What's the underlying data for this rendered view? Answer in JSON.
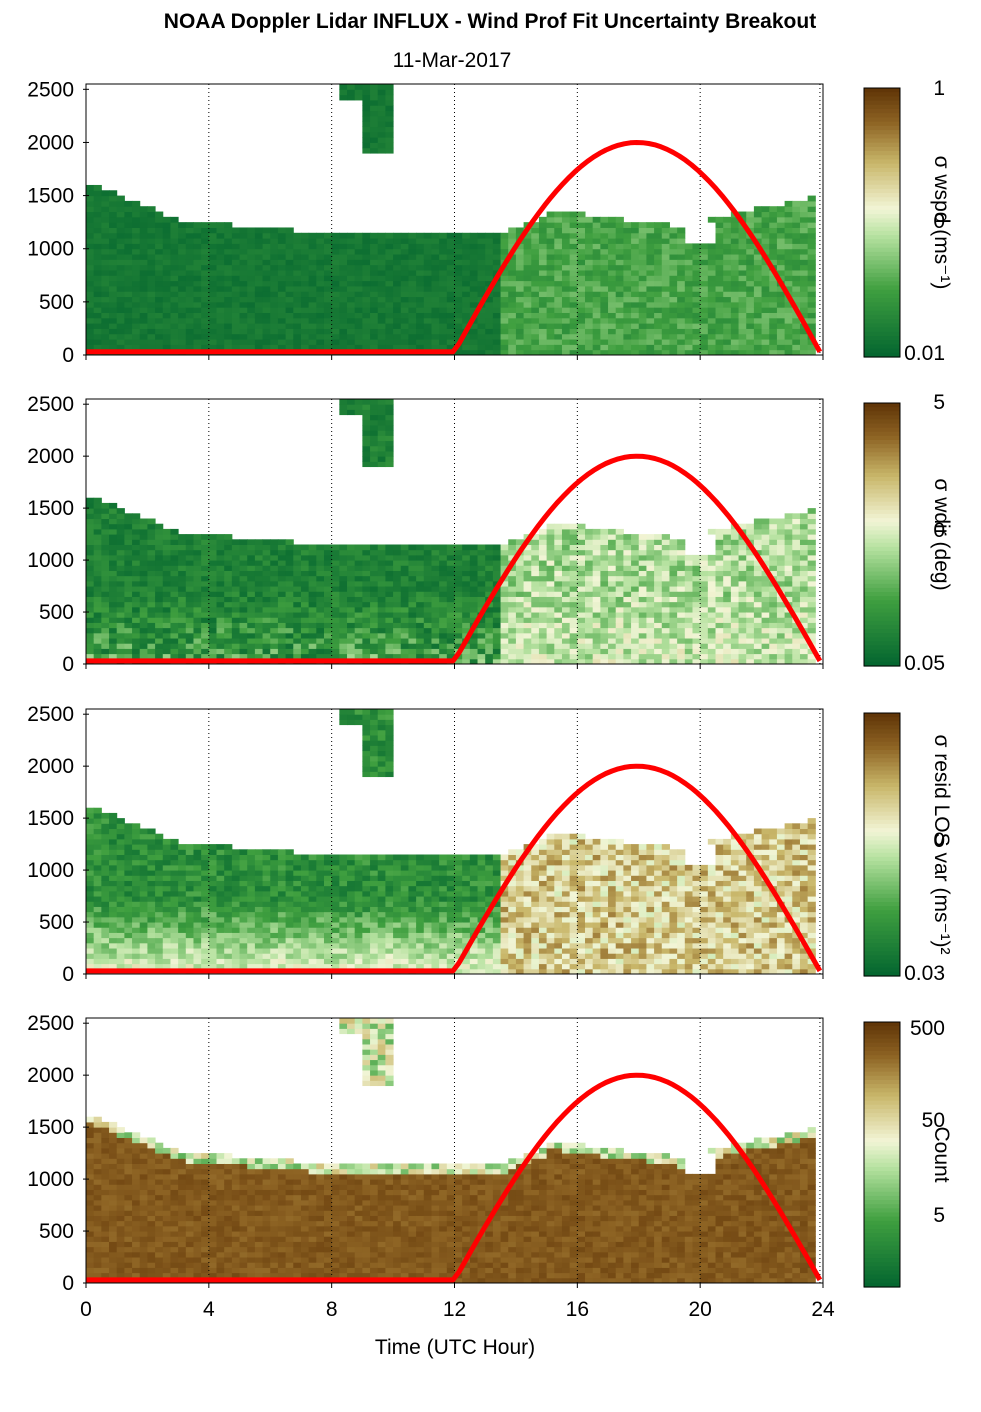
{
  "title": "NOAA Doppler Lidar INFLUX - Wind Prof Fit Uncertainty Breakout",
  "subtitle": "11-Mar-2017",
  "chart_data": [
    {
      "type": "heatmap",
      "panel": 1,
      "ylabel": "",
      "xlabel": "",
      "xlim": [
        0,
        24
      ],
      "ylim": [
        0,
        2550
      ],
      "y_ticks": [
        "0",
        "500",
        "1000",
        "1500",
        "2000",
        "2500"
      ],
      "colorbar": {
        "label": "σ wspd (ms⁻¹)",
        "tick_labels": [
          "1",
          "0",
          "0.01"
        ],
        "scale": "log"
      },
      "palette": "green-to-brown",
      "sun_elevation_curve": {
        "color": "#ff0000",
        "x": [
          0,
          12,
          13,
          14,
          15,
          16,
          17,
          18,
          19,
          20,
          21,
          22,
          23,
          23.9
        ],
        "y": [
          30,
          30,
          520,
          940,
          1300,
          1600,
          1850,
          2000,
          1850,
          1600,
          1300,
          940,
          520,
          30
        ]
      }
    },
    {
      "type": "heatmap",
      "panel": 2,
      "ylabel": "",
      "xlabel": "",
      "xlim": [
        0,
        24
      ],
      "ylim": [
        0,
        2550
      ],
      "y_ticks": [
        "0",
        "500",
        "1000",
        "1500",
        "2000",
        "2500"
      ],
      "colorbar": {
        "label": "σ wdir (deg)",
        "tick_labels": [
          "5",
          "0",
          "0.05"
        ],
        "scale": "log"
      },
      "palette": "green-to-brown",
      "sun_elevation_curve": {
        "color": "#ff0000",
        "x": [
          0,
          12,
          13,
          14,
          15,
          16,
          17,
          18,
          19,
          20,
          21,
          22,
          23,
          23.9
        ],
        "y": [
          30,
          30,
          520,
          940,
          1300,
          1600,
          1850,
          2000,
          1850,
          1600,
          1300,
          940,
          520,
          30
        ]
      }
    },
    {
      "type": "heatmap",
      "panel": 3,
      "ylabel": "",
      "xlabel": "",
      "xlim": [
        0,
        24
      ],
      "ylim": [
        0,
        2550
      ],
      "y_ticks": [
        "0",
        "500",
        "1000",
        "1500",
        "2000",
        "2500"
      ],
      "colorbar": {
        "label": "σ resid LOS var (ms⁻¹)²",
        "tick_labels": [
          "",
          "0",
          "0.03"
        ],
        "scale": "log"
      },
      "palette": "green-to-brown",
      "sun_elevation_curve": {
        "color": "#ff0000",
        "x": [
          0,
          12,
          13,
          14,
          15,
          16,
          17,
          18,
          19,
          20,
          21,
          22,
          23,
          23.9
        ],
        "y": [
          30,
          30,
          520,
          940,
          1300,
          1600,
          1850,
          2000,
          1850,
          1600,
          1300,
          940,
          520,
          30
        ]
      }
    },
    {
      "type": "heatmap",
      "panel": 4,
      "ylabel": "",
      "xlabel": "Time (UTC Hour)",
      "xlim": [
        0,
        24
      ],
      "ylim": [
        0,
        2550
      ],
      "x_ticks": [
        "0",
        "4",
        "8",
        "12",
        "16",
        "20",
        "24"
      ],
      "y_ticks": [
        "0",
        "500",
        "1000",
        "1500",
        "2000",
        "2500"
      ],
      "colorbar": {
        "label": "Count",
        "tick_labels": [
          "500",
          "50",
          "5"
        ],
        "scale": "log"
      },
      "palette": "green-to-brown",
      "sun_elevation_curve": {
        "color": "#ff0000",
        "x": [
          0,
          12,
          13,
          14,
          15,
          16,
          17,
          18,
          19,
          20,
          21,
          22,
          23,
          23.9
        ],
        "y": [
          30,
          30,
          520,
          940,
          1300,
          1600,
          1850,
          2000,
          1850,
          1600,
          1300,
          940,
          520,
          30
        ]
      }
    }
  ],
  "colors": {
    "curve": "#ff0000",
    "dark_green": "#03652f",
    "light": "#f2f5d6",
    "dark_brown": "#663a08"
  }
}
